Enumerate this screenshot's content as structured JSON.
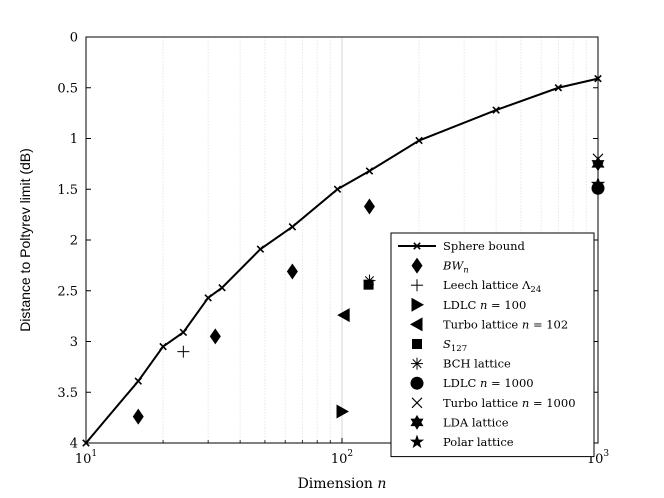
{
  "chart_data": {
    "type": "scatter",
    "title": "",
    "xlabel": "Dimension n",
    "ylabel": "Distance to Poltyrev limit (dB)",
    "x_scale": "log",
    "xlim": [
      10,
      1000
    ],
    "ylim": [
      0,
      4
    ],
    "y_reversed": true,
    "grid": "x-major-and-minor",
    "legend_position": "bottom-right",
    "x_ticks": [
      {
        "base": "10",
        "exp": "1",
        "value": 10
      },
      {
        "base": "10",
        "exp": "2",
        "value": 100
      },
      {
        "base": "10",
        "exp": "3",
        "value": 1000
      }
    ],
    "y_ticks": [
      {
        "label": "0",
        "value": 0
      },
      {
        "label": "0.5",
        "value": 0.5
      },
      {
        "label": "1",
        "value": 1
      },
      {
        "label": "1.5",
        "value": 1.5
      },
      {
        "label": "2",
        "value": 2
      },
      {
        "label": "2.5",
        "value": 2.5
      },
      {
        "label": "3",
        "value": 3
      },
      {
        "label": "3.5",
        "value": 3.5
      },
      {
        "label": "4",
        "value": 4
      }
    ],
    "series": [
      {
        "name": "Sphere bound",
        "marker": "x-line",
        "points": [
          {
            "x": 10,
            "y": 4.0
          },
          {
            "x": 16,
            "y": 3.39
          },
          {
            "x": 20,
            "y": 3.05
          },
          {
            "x": 24,
            "y": 2.91
          },
          {
            "x": 30,
            "y": 2.57
          },
          {
            "x": 34,
            "y": 2.47
          },
          {
            "x": 48,
            "y": 2.09
          },
          {
            "x": 64,
            "y": 1.87
          },
          {
            "x": 96,
            "y": 1.5
          },
          {
            "x": 128,
            "y": 1.32
          },
          {
            "x": 200,
            "y": 1.02
          },
          {
            "x": 400,
            "y": 0.72
          },
          {
            "x": 700,
            "y": 0.5
          },
          {
            "x": 1000,
            "y": 0.41
          }
        ]
      },
      {
        "name": "BW_n",
        "marker": "diamond",
        "points": [
          {
            "x": 16,
            "y": 3.74
          },
          {
            "x": 32,
            "y": 2.95
          },
          {
            "x": 64,
            "y": 2.31
          },
          {
            "x": 128,
            "y": 1.67
          }
        ]
      },
      {
        "name": "Leech lattice Λ24",
        "marker": "plus",
        "points": [
          {
            "x": 24,
            "y": 3.1
          }
        ]
      },
      {
        "name": "LDLC n = 100",
        "marker": "triangle-right",
        "points": [
          {
            "x": 100,
            "y": 3.69
          }
        ]
      },
      {
        "name": "Turbo lattice n = 102",
        "marker": "triangle-left",
        "points": [
          {
            "x": 102,
            "y": 2.74
          }
        ]
      },
      {
        "name": "S127",
        "marker": "square",
        "points": [
          {
            "x": 127,
            "y": 2.44
          }
        ]
      },
      {
        "name": "BCH lattice",
        "marker": "asterisk",
        "points": [
          {
            "x": 128,
            "y": 2.4
          }
        ]
      },
      {
        "name": "LDLC n = 1000",
        "marker": "circle",
        "points": [
          {
            "x": 1000,
            "y": 1.49
          }
        ]
      },
      {
        "name": "Turbo lattice n = 1000",
        "marker": "x",
        "points": [
          {
            "x": 1000,
            "y": 1.2
          }
        ]
      },
      {
        "name": "LDA lattice",
        "marker": "hexagram",
        "points": [
          {
            "x": 1000,
            "y": 1.25
          }
        ]
      },
      {
        "name": "Polar lattice",
        "marker": "pentagram",
        "points": [
          {
            "x": 1000,
            "y": 1.45
          }
        ]
      }
    ],
    "legend": [
      {
        "marker": "x-line",
        "parts": [
          {
            "t": "Sphere bound",
            "s": "normal"
          }
        ]
      },
      {
        "marker": "diamond",
        "parts": [
          {
            "t": "BW",
            "s": "italic"
          },
          {
            "t": "n",
            "s": "sub-italic"
          }
        ]
      },
      {
        "marker": "plus",
        "parts": [
          {
            "t": "Leech lattice Λ",
            "s": "normal"
          },
          {
            "t": "24",
            "s": "sub"
          }
        ]
      },
      {
        "marker": "triangle-right",
        "parts": [
          {
            "t": "LDLC ",
            "s": "normal"
          },
          {
            "t": "n",
            "s": "italic"
          },
          {
            "t": " = 100",
            "s": "normal"
          }
        ]
      },
      {
        "marker": "triangle-left",
        "parts": [
          {
            "t": "Turbo lattice ",
            "s": "normal"
          },
          {
            "t": "n",
            "s": "italic"
          },
          {
            "t": " = 102",
            "s": "normal"
          }
        ]
      },
      {
        "marker": "square",
        "parts": [
          {
            "t": "S",
            "s": "italic"
          },
          {
            "t": "127",
            "s": "sub"
          }
        ]
      },
      {
        "marker": "asterisk",
        "parts": [
          {
            "t": "BCH lattice",
            "s": "normal"
          }
        ]
      },
      {
        "marker": "circle",
        "parts": [
          {
            "t": "LDLC ",
            "s": "normal"
          },
          {
            "t": "n",
            "s": "italic"
          },
          {
            "t": " = 1000",
            "s": "normal"
          }
        ]
      },
      {
        "marker": "x",
        "parts": [
          {
            "t": "Turbo lattice ",
            "s": "normal"
          },
          {
            "t": "n",
            "s": "italic"
          },
          {
            "t": " = 1000",
            "s": "normal"
          }
        ]
      },
      {
        "marker": "hexagram",
        "parts": [
          {
            "t": "LDA lattice",
            "s": "normal"
          }
        ]
      },
      {
        "marker": "pentagram",
        "parts": [
          {
            "t": "Polar lattice",
            "s": "normal"
          }
        ]
      }
    ]
  },
  "labels": {
    "xlabel_main": "Dimension ",
    "xlabel_var": "n",
    "ylabel": "Distance to Poltyrev limit (dB)"
  }
}
